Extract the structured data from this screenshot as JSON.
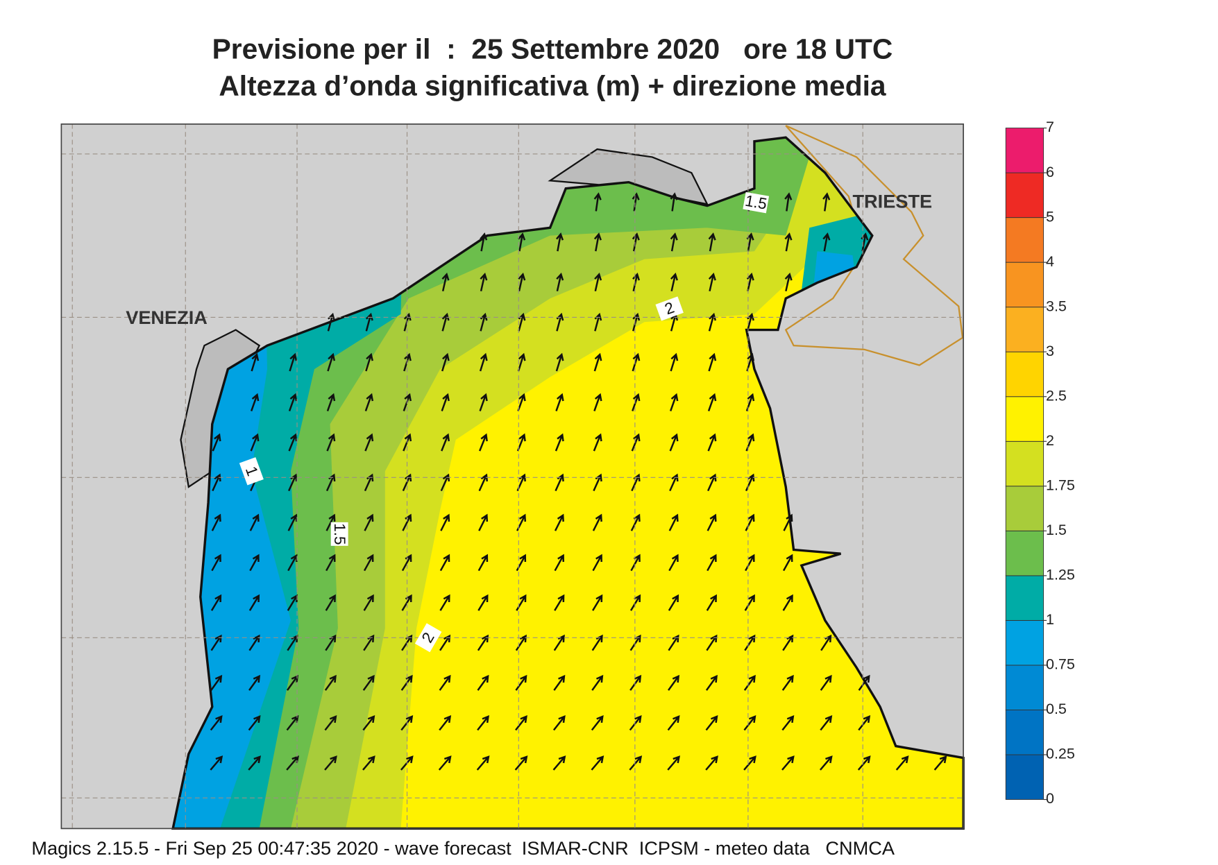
{
  "header": {
    "title": "Previsione per il  :  25 Settembre 2020   ore 18 UTC",
    "subtitle": "Altezza d’onda significativa (m) + direzione media"
  },
  "map": {
    "place_labels": [
      "VENEZIA",
      "TRIESTE"
    ],
    "contour_labels": [
      "1.5",
      "2",
      "1",
      "1.5",
      "2"
    ]
  },
  "legend": {
    "levels": [
      0,
      0.25,
      0.5,
      0.75,
      1,
      1.25,
      1.5,
      1.75,
      2,
      2.5,
      3,
      3.5,
      4,
      5,
      6,
      7
    ],
    "colors": [
      "#0062b2",
      "#0074c4",
      "#008ad4",
      "#00a2e2",
      "#00aca6",
      "#6cbe4c",
      "#a8cc3a",
      "#d4e020",
      "#fff200",
      "#ffd400",
      "#fbb020",
      "#f89420",
      "#f47a22",
      "#ee2a24",
      "#ec1c6c"
    ]
  },
  "footer": "Magics 2.15.5 - Fri Sep 25 00:47:35 2020 - wave forecast  ISMAR-CNR  ICPSM - meteo data   CNMCA"
}
